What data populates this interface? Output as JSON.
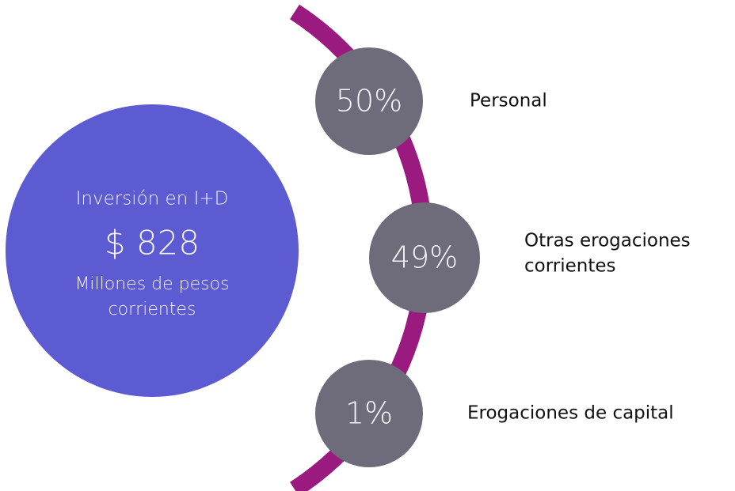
{
  "main": {
    "title": "Inversión en I+D",
    "amount": "$ 828",
    "unit_lines": [
      "Millones de pesos",
      "corrientes"
    ]
  },
  "items": [
    {
      "percent": "50%",
      "label_lines": [
        "Personal"
      ]
    },
    {
      "percent": "49%",
      "label_lines": [
        "Otras erogaciones",
        "corrientes"
      ]
    },
    {
      "percent": "1%",
      "label_lines": [
        "Erogaciones de capital"
      ]
    }
  ]
}
